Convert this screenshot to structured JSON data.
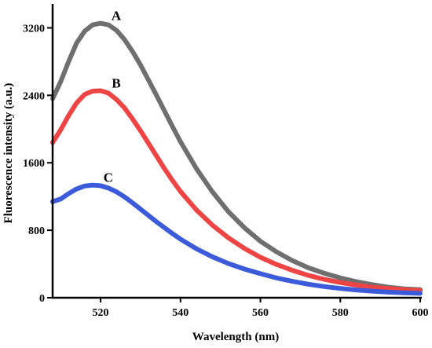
{
  "chart_data": {
    "type": "line",
    "xlabel": "Wavelength (nm)",
    "ylabel": "Fluorescence intensity (a.u.)",
    "xlim": [
      508,
      600
    ],
    "ylim": [
      0,
      3400
    ],
    "xticks": [
      520,
      540,
      560,
      580,
      600
    ],
    "yticks": [
      0,
      800,
      1600,
      2400,
      3200
    ],
    "grid": false,
    "legend": "none",
    "series": [
      {
        "name": "A",
        "color": "#6f6f6f",
        "x": [
          508,
          510,
          512,
          514,
          516,
          518,
          520,
          522,
          524,
          526,
          528,
          530,
          532,
          534,
          536,
          538,
          540,
          544,
          548,
          552,
          556,
          560,
          564,
          568,
          572,
          576,
          580,
          584,
          588,
          592,
          596,
          600
        ],
        "y": [
          2360,
          2560,
          2800,
          3020,
          3160,
          3235,
          3255,
          3235,
          3170,
          3060,
          2920,
          2760,
          2580,
          2400,
          2215,
          2030,
          1850,
          1530,
          1255,
          1020,
          830,
          670,
          545,
          440,
          355,
          290,
          235,
          190,
          155,
          125,
          105,
          95
        ]
      },
      {
        "name": "B",
        "color": "#ee4444",
        "x": [
          508,
          510,
          512,
          514,
          516,
          518,
          520,
          522,
          524,
          526,
          528,
          530,
          532,
          534,
          536,
          538,
          540,
          544,
          548,
          552,
          556,
          560,
          564,
          568,
          572,
          576,
          580,
          584,
          588,
          592,
          596,
          600
        ],
        "y": [
          1840,
          1990,
          2160,
          2310,
          2410,
          2450,
          2455,
          2425,
          2350,
          2250,
          2120,
          1980,
          1830,
          1680,
          1530,
          1390,
          1260,
          1040,
          860,
          710,
          585,
          480,
          395,
          325,
          265,
          218,
          180,
          150,
          125,
          108,
          95,
          85
        ]
      },
      {
        "name": "C",
        "color": "#3b5bdb",
        "x": [
          508,
          510,
          512,
          514,
          516,
          518,
          520,
          522,
          524,
          526,
          528,
          530,
          532,
          534,
          536,
          538,
          540,
          544,
          548,
          552,
          556,
          560,
          564,
          568,
          572,
          576,
          580,
          584,
          588,
          592,
          596,
          600
        ],
        "y": [
          1140,
          1170,
          1235,
          1290,
          1325,
          1335,
          1328,
          1300,
          1255,
          1195,
          1125,
          1050,
          975,
          900,
          830,
          760,
          695,
          580,
          485,
          405,
          340,
          285,
          235,
          195,
          160,
          132,
          110,
          92,
          78,
          66,
          58,
          52
        ]
      }
    ]
  }
}
